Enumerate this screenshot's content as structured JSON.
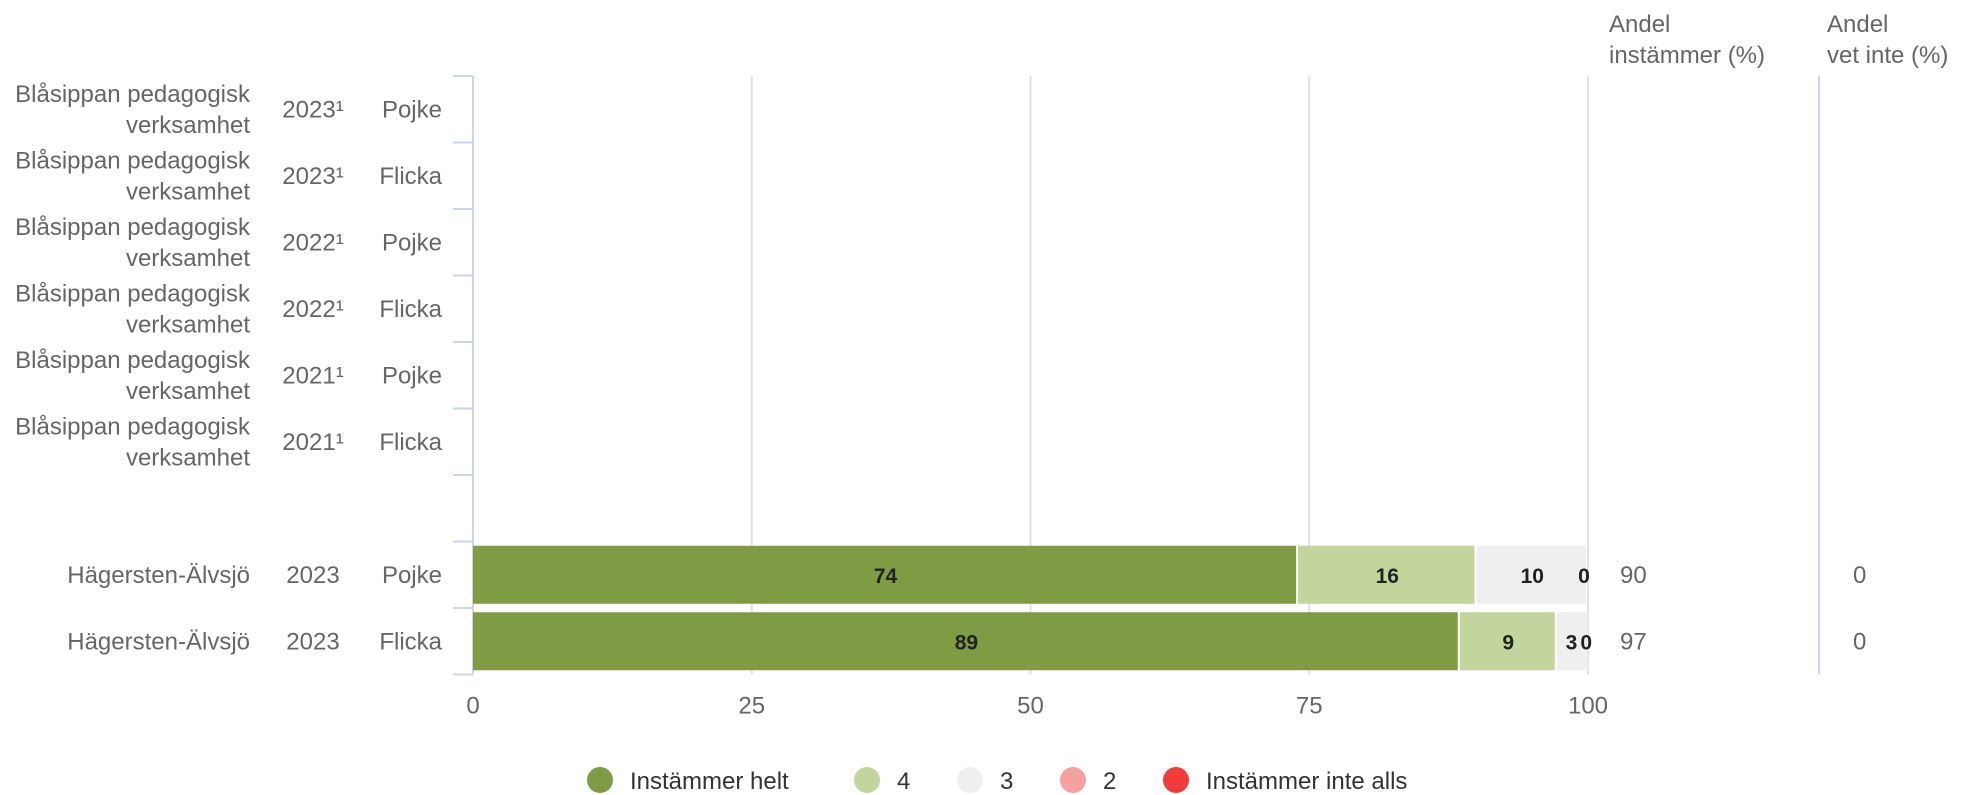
{
  "chart_data": {
    "type": "bar",
    "orientation": "horizontal",
    "stacked": true,
    "xlim": [
      0,
      100
    ],
    "x_ticks": [
      "0",
      "25",
      "50",
      "75",
      "100"
    ],
    "grid": true,
    "legend_position": "bottom",
    "right_columns": {
      "instammer_header": [
        "Andel",
        "instämmer (%)"
      ],
      "vet_inte_header": [
        "Andel",
        "vet inte (%)"
      ]
    },
    "rows": [
      {
        "name_lines": [
          "Blåsippan pedagogisk",
          "verksamhet"
        ],
        "year": "2023¹",
        "gender": "Pojke",
        "values": null,
        "instammer": "",
        "vet_inte": ""
      },
      {
        "name_lines": [
          "Blåsippan pedagogisk",
          "verksamhet"
        ],
        "year": "2023¹",
        "gender": "Flicka",
        "values": null,
        "instammer": "",
        "vet_inte": ""
      },
      {
        "name_lines": [
          "Blåsippan pedagogisk",
          "verksamhet"
        ],
        "year": "2022¹",
        "gender": "Pojke",
        "values": null,
        "instammer": "",
        "vet_inte": ""
      },
      {
        "name_lines": [
          "Blåsippan pedagogisk",
          "verksamhet"
        ],
        "year": "2022¹",
        "gender": "Flicka",
        "values": null,
        "instammer": "",
        "vet_inte": ""
      },
      {
        "name_lines": [
          "Blåsippan pedagogisk",
          "verksamhet"
        ],
        "year": "2021¹",
        "gender": "Pojke",
        "values": null,
        "instammer": "",
        "vet_inte": ""
      },
      {
        "name_lines": [
          "Blåsippan pedagogisk",
          "verksamhet"
        ],
        "year": "2021¹",
        "gender": "Flicka",
        "values": null,
        "instammer": "",
        "vet_inte": ""
      },
      {
        "gap": true
      },
      {
        "name_lines": [
          "Hägersten-Älvsjö"
        ],
        "year": "2023",
        "gender": "Pojke",
        "values": [
          74,
          16,
          10,
          0,
          0
        ],
        "labels": [
          "74",
          "16",
          "10",
          "0",
          ""
        ],
        "instammer": "90",
        "vet_inte": "0"
      },
      {
        "name_lines": [
          "Hägersten-Älvsjö"
        ],
        "year": "2023",
        "gender": "Flicka",
        "values": [
          88.5,
          8.7,
          3,
          0,
          0
        ],
        "labels": [
          "89",
          "9",
          "3",
          "0",
          ""
        ],
        "instammer": "97",
        "vet_inte": "0"
      }
    ],
    "series": [
      {
        "name": "Instämmer helt",
        "color": "#7f9c44"
      },
      {
        "name": "4",
        "color": "#c2d59c"
      },
      {
        "name": "3",
        "color": "#efefef"
      },
      {
        "name": "2",
        "color": "#f5a19f"
      },
      {
        "name": "Instämmer inte alls",
        "color": "#f03c3c"
      }
    ]
  }
}
